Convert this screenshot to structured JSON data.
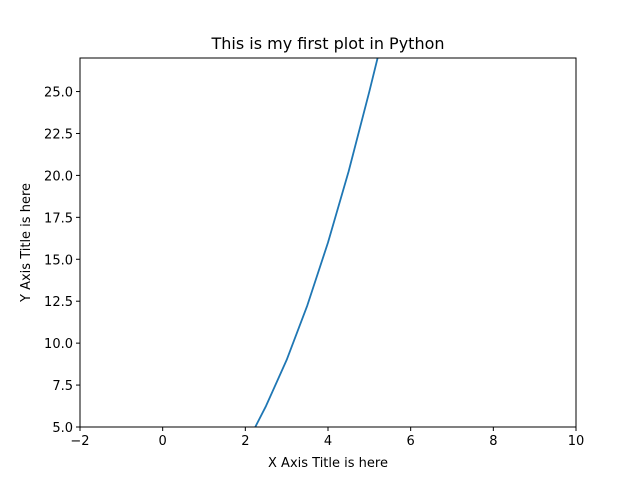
{
  "chart_data": {
    "type": "line",
    "title": "This is my first plot in Python",
    "xlabel": "X Axis Title is here",
    "ylabel": "Y Axis Title is here",
    "xlim": [
      -2,
      10
    ],
    "ylim": [
      5,
      27
    ],
    "grid": false,
    "legend": "none",
    "x_ticks": [
      -2,
      0,
      2,
      4,
      6,
      8,
      10
    ],
    "x_tick_labels": [
      "−2",
      "0",
      "2",
      "4",
      "6",
      "8",
      "10"
    ],
    "y_ticks": [
      5,
      7.5,
      10,
      12.5,
      15,
      17.5,
      20,
      22.5,
      25
    ],
    "y_tick_labels": [
      "5.0",
      "7.5",
      "10.0",
      "12.5",
      "15.0",
      "17.5",
      "20.0",
      "22.5",
      "25.0"
    ],
    "series": [
      {
        "color": "#1f77b4",
        "x": [
          2.24,
          2.5,
          3.0,
          3.5,
          4.0,
          4.5,
          5.0,
          5.2
        ],
        "y": [
          5.0,
          6.25,
          9.0,
          12.25,
          16.0,
          20.25,
          25.0,
          27.0
        ]
      }
    ]
  }
}
